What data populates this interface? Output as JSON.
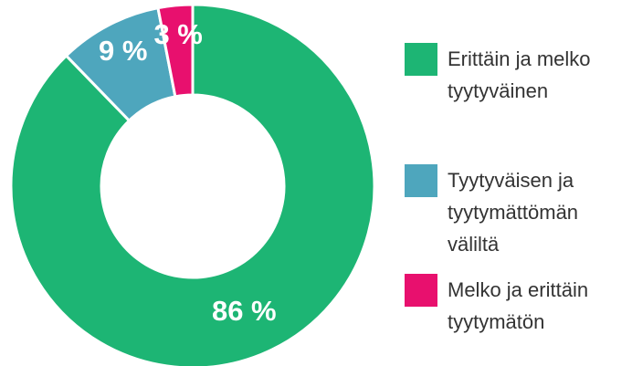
{
  "chart_data": {
    "type": "donut",
    "categories": [
      "Erittäin ja melko tyytyväinen",
      "Tyytyväisen ja tyytymättömän väliltä",
      "Melko ja erittäin tyytymätön"
    ],
    "values": [
      86,
      9,
      3
    ],
    "value_labels": [
      "86 %",
      "9 %",
      "3 %"
    ],
    "colors": [
      "#1db574",
      "#4ea6bd",
      "#e8106e"
    ],
    "legend": "right"
  }
}
